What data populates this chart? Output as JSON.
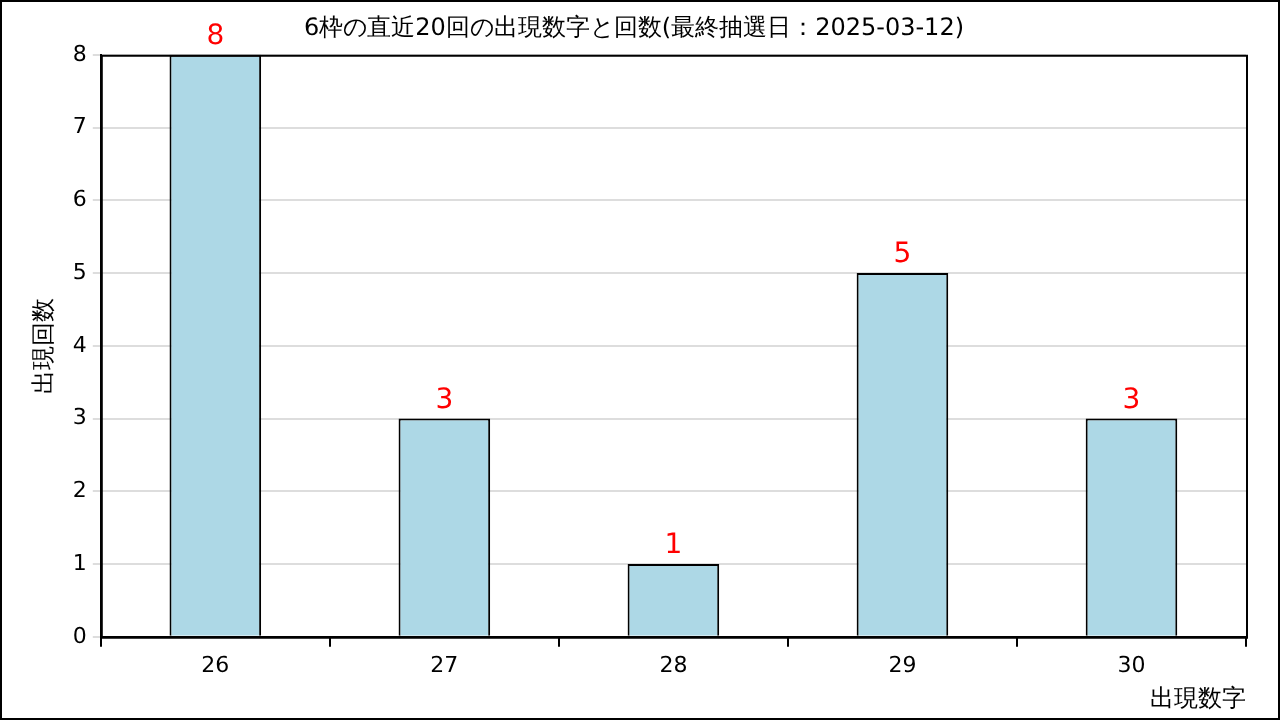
{
  "chart_data": {
    "type": "bar",
    "title": "6枠の直近20回の出現数字と回数(最終抽選日：2025-03-12)",
    "xlabel": "出現数字",
    "ylabel": "出現回数",
    "categories": [
      "26",
      "27",
      "28",
      "29",
      "30"
    ],
    "values": [
      8,
      3,
      1,
      5,
      3
    ],
    "color": "#add8e6",
    "ylim": [
      0,
      8
    ],
    "yticks": [
      0,
      1,
      2,
      3,
      4,
      5,
      6,
      7,
      8
    ],
    "grid": "y",
    "data_labels": true,
    "legend": false
  }
}
